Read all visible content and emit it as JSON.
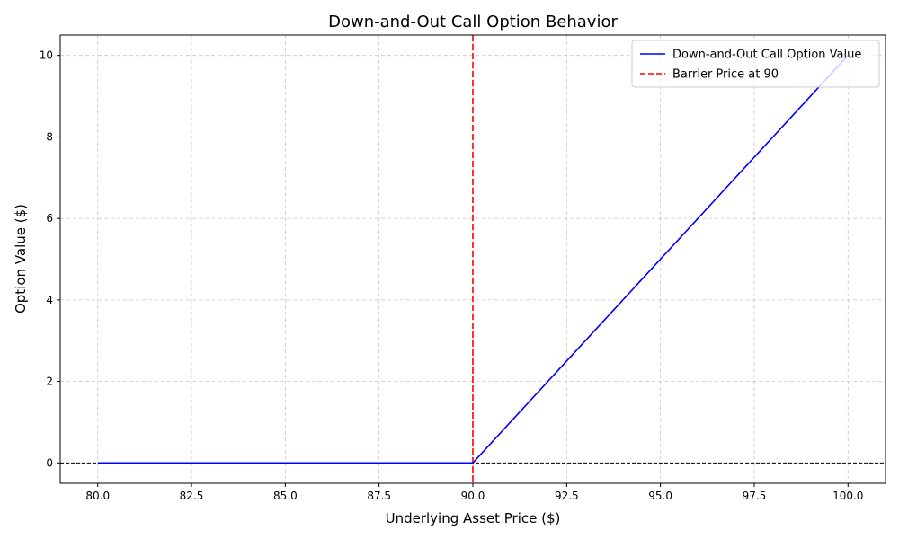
{
  "chart_data": {
    "type": "line",
    "title": "Down-and-Out Call Option Behavior",
    "xlabel": "Underlying Asset Price ($)",
    "ylabel": "Option Value ($)",
    "xlim": [
      79.0,
      101.0
    ],
    "ylim": [
      -0.5,
      10.5
    ],
    "x_ticks": [
      80.0,
      82.5,
      85.0,
      87.5,
      90.0,
      92.5,
      95.0,
      97.5,
      100.0
    ],
    "x_tick_labels": [
      "80.0",
      "82.5",
      "85.0",
      "87.5",
      "90.0",
      "92.5",
      "95.0",
      "97.5",
      "100.0"
    ],
    "y_ticks": [
      0,
      2,
      4,
      6,
      8,
      10
    ],
    "y_tick_labels": [
      "0",
      "2",
      "4",
      "6",
      "8",
      "10"
    ],
    "grid": true,
    "legend_position": "top-right",
    "series": [
      {
        "name": "Down-and-Out Call Option Value",
        "color": "#0000ff",
        "style": "solid",
        "x": [
          80.0,
          90.0,
          90.1,
          100.0
        ],
        "values": [
          0.0,
          0.0,
          0.1,
          10.0
        ]
      }
    ],
    "reference_lines": [
      {
        "name": "Barrier Price at 90",
        "orientation": "vertical",
        "value": 90,
        "color": "#ff0000",
        "style": "dashed",
        "in_legend": true
      },
      {
        "name": "",
        "orientation": "horizontal",
        "value": 0,
        "color": "#000000",
        "style": "dashed",
        "in_legend": false
      }
    ]
  }
}
